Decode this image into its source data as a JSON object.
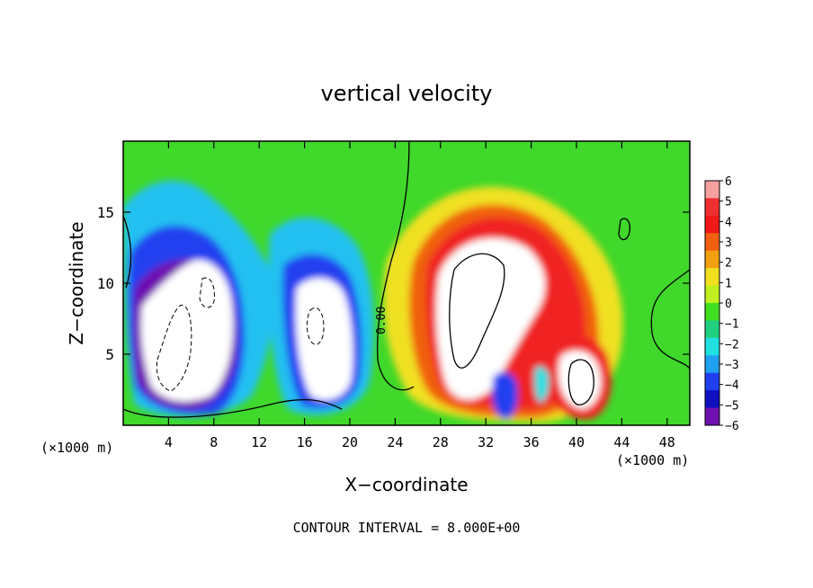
{
  "chart_data": {
    "type": "heatmap",
    "title": "vertical velocity",
    "xlabel": "X−coordinate",
    "ylabel": "Z−coordinate",
    "x_unit_left": "(×1000 m)",
    "x_unit_right": "(×1000 m)",
    "footer": "CONTOUR INTERVAL = 8.000E+00",
    "contour_label": "0.00",
    "xlim": [
      0,
      50
    ],
    "ylim": [
      0,
      20
    ],
    "x_ticks": [
      "4",
      "8",
      "12",
      "16",
      "20",
      "24",
      "28",
      "32",
      "36",
      "40",
      "44",
      "48"
    ],
    "y_ticks": [
      "5",
      "10",
      "15"
    ],
    "colorbar": {
      "min": -6,
      "max": 6,
      "labels": [
        "6",
        "5",
        "4",
        "3",
        "2",
        "1",
        "0",
        "−1",
        "−2",
        "−3",
        "−4",
        "−5",
        "−6"
      ],
      "colors": [
        "#f7a0a0",
        "#f03030",
        "#f01818",
        "#f06010",
        "#f0a010",
        "#f0e020",
        "#c0f020",
        "#40e020",
        "#20d080",
        "#20e0e0",
        "#20a0f0",
        "#2040f0",
        "#1010c0",
        "#7010b0"
      ]
    },
    "features": [
      {
        "name": "downdraft west",
        "x": 6,
        "z": 7,
        "peak": -6
      },
      {
        "name": "downdraft central",
        "x": 16,
        "z": 6,
        "peak": -6
      },
      {
        "name": "updraft main",
        "x": 32,
        "z": 8,
        "peak": 6
      },
      {
        "name": "updraft east",
        "x": 40,
        "z": 3,
        "peak": 6
      },
      {
        "name": "downdraft small",
        "x": 33.5,
        "z": 2,
        "peak": -5
      }
    ]
  }
}
